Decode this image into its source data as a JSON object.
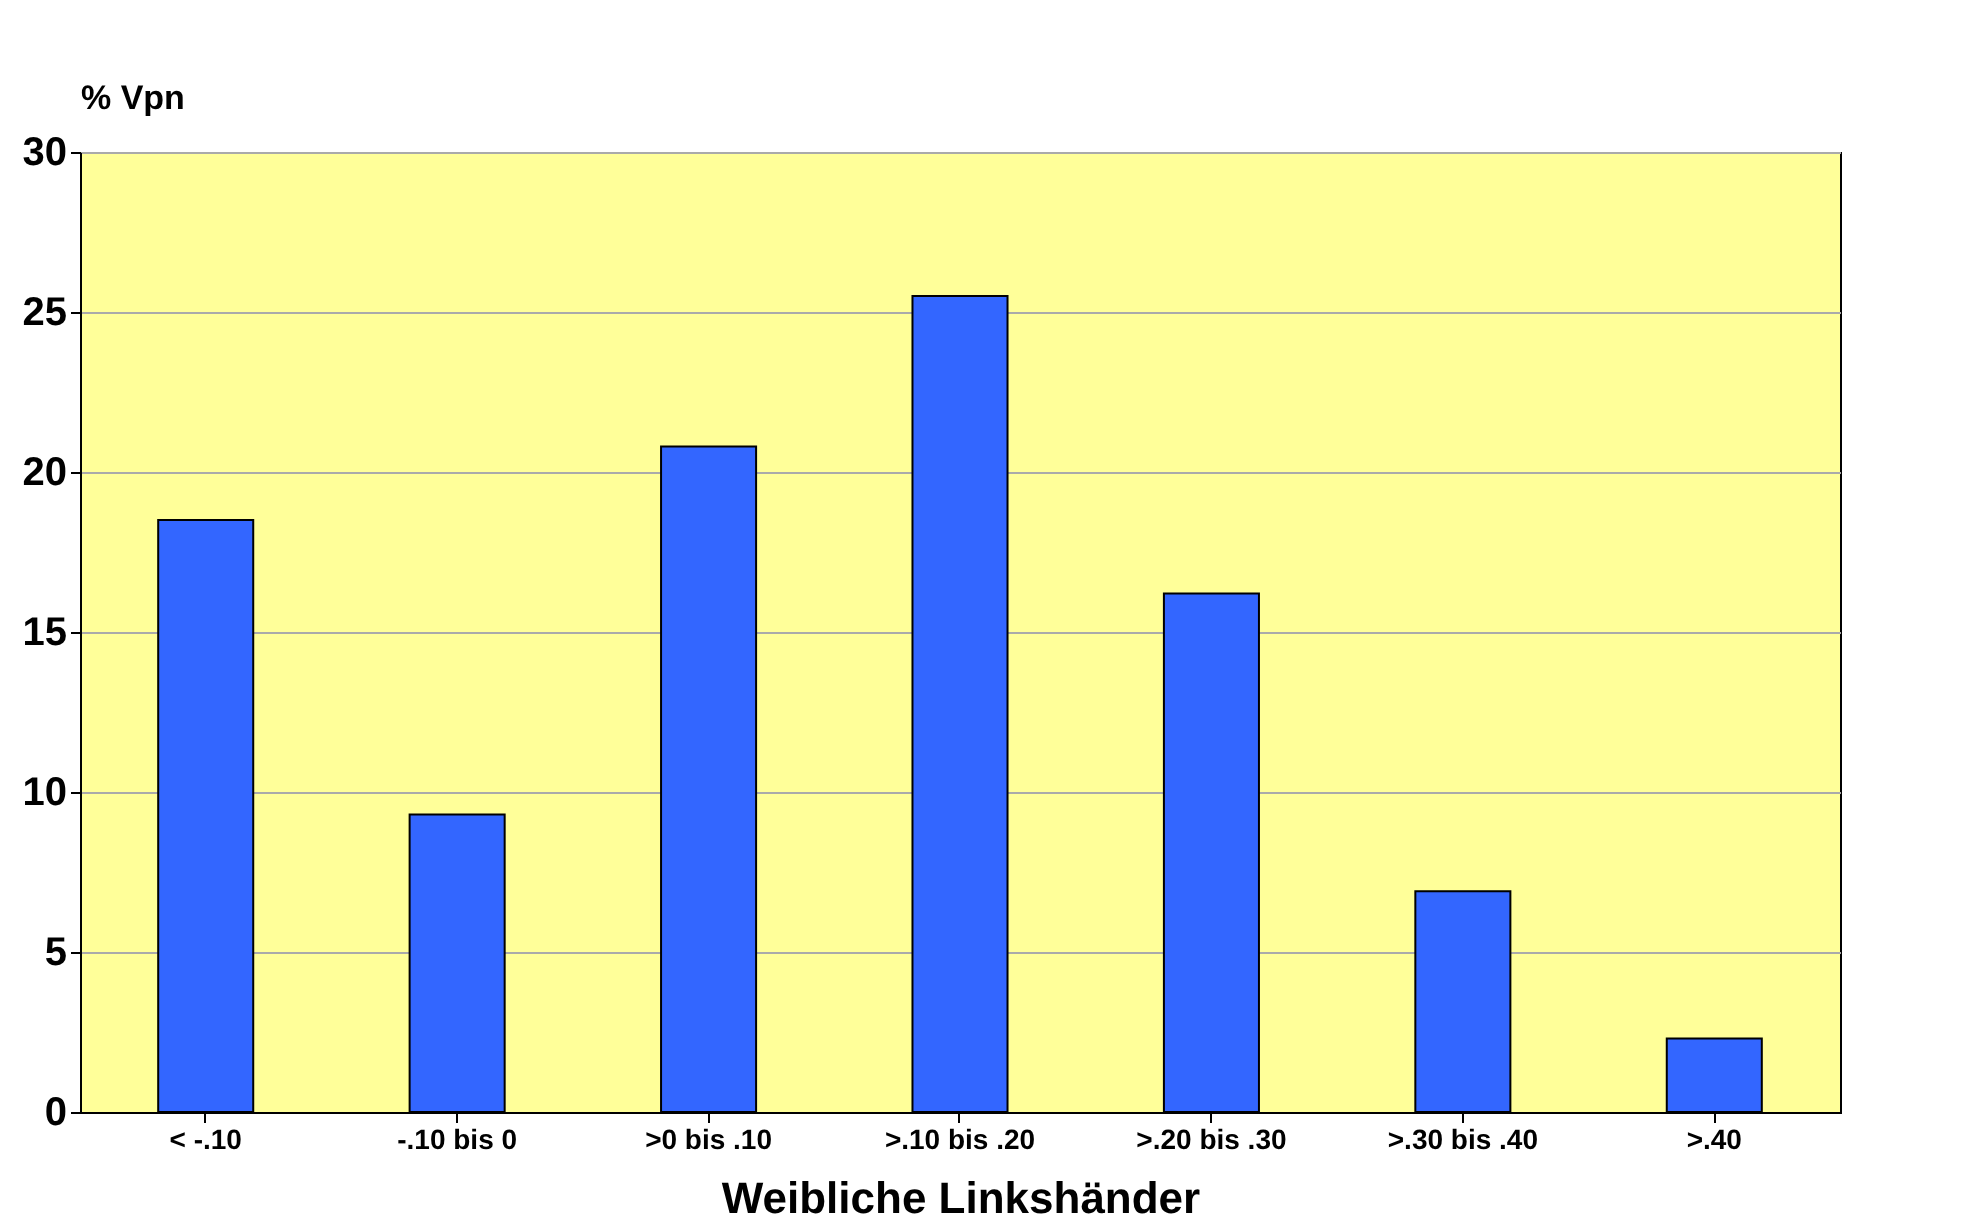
{
  "chart_data": {
    "type": "bar",
    "ylabel": "% Vpn",
    "xlabel": "Weibliche Linkshänder",
    "categories": [
      "< -.10",
      "-.10 bis 0",
      ">0 bis .10",
      ">.10 bis .20",
      ">.20 bis .30",
      ">.30 bis .40",
      ">.40"
    ],
    "values": [
      18.5,
      9.3,
      20.8,
      25.5,
      16.2,
      6.9,
      2.3
    ],
    "color": "#3366ff",
    "ylim": [
      0,
      30
    ],
    "yticks": [
      0,
      5,
      10,
      15,
      20,
      25,
      30
    ],
    "grid": "y"
  }
}
